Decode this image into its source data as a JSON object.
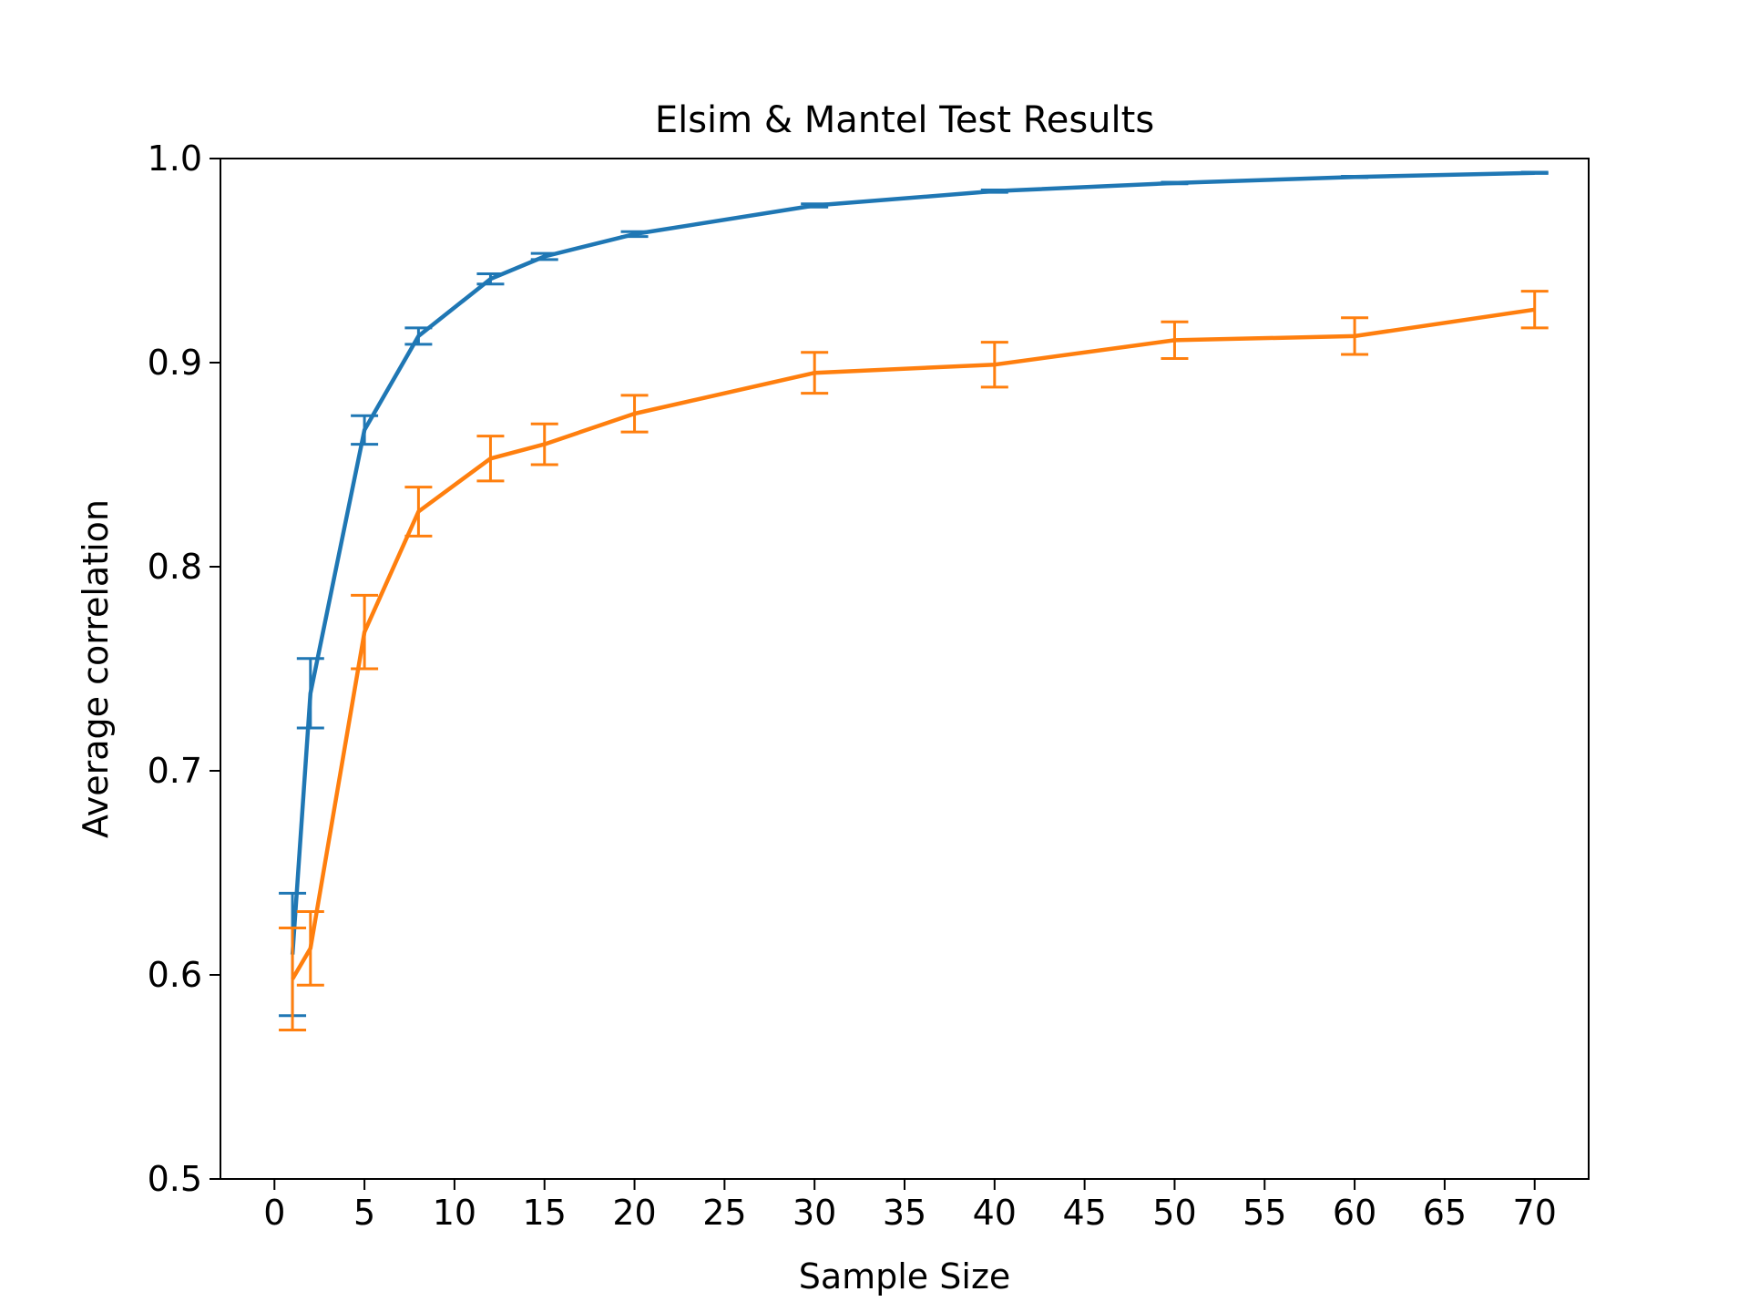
{
  "chart_data": {
    "type": "line",
    "title": "Elsim & Mantel Test Results",
    "xlabel": "Sample Size",
    "ylabel": "Average correlation",
    "xlim": [
      -3,
      73
    ],
    "ylim": [
      0.5,
      1.0
    ],
    "xticks": [
      0,
      5,
      10,
      15,
      20,
      25,
      30,
      35,
      40,
      45,
      50,
      55,
      60,
      65,
      70
    ],
    "yticks": [
      "0.5",
      "0.6",
      "0.7",
      "0.8",
      "0.9",
      "1.0"
    ],
    "grid": false,
    "x": [
      1,
      2,
      5,
      8,
      12,
      15,
      20,
      30,
      40,
      50,
      60,
      70
    ],
    "series": [
      {
        "color": "#1f77b4",
        "values": [
          0.61,
          0.738,
          0.867,
          0.913,
          0.941,
          0.952,
          0.963,
          0.977,
          0.984,
          0.988,
          0.991,
          0.993
        ],
        "errors": [
          0.03,
          0.017,
          0.007,
          0.004,
          0.0025,
          0.0015,
          0.0012,
          0.0008,
          0.0006,
          0.0004,
          0.0003,
          0.0003
        ]
      },
      {
        "color": "#ff7f0e",
        "values": [
          0.598,
          0.613,
          0.768,
          0.827,
          0.853,
          0.86,
          0.875,
          0.895,
          0.899,
          0.911,
          0.913,
          0.926
        ],
        "errors": [
          0.025,
          0.018,
          0.018,
          0.012,
          0.011,
          0.01,
          0.009,
          0.01,
          0.011,
          0.009,
          0.009,
          0.009
        ]
      }
    ]
  }
}
